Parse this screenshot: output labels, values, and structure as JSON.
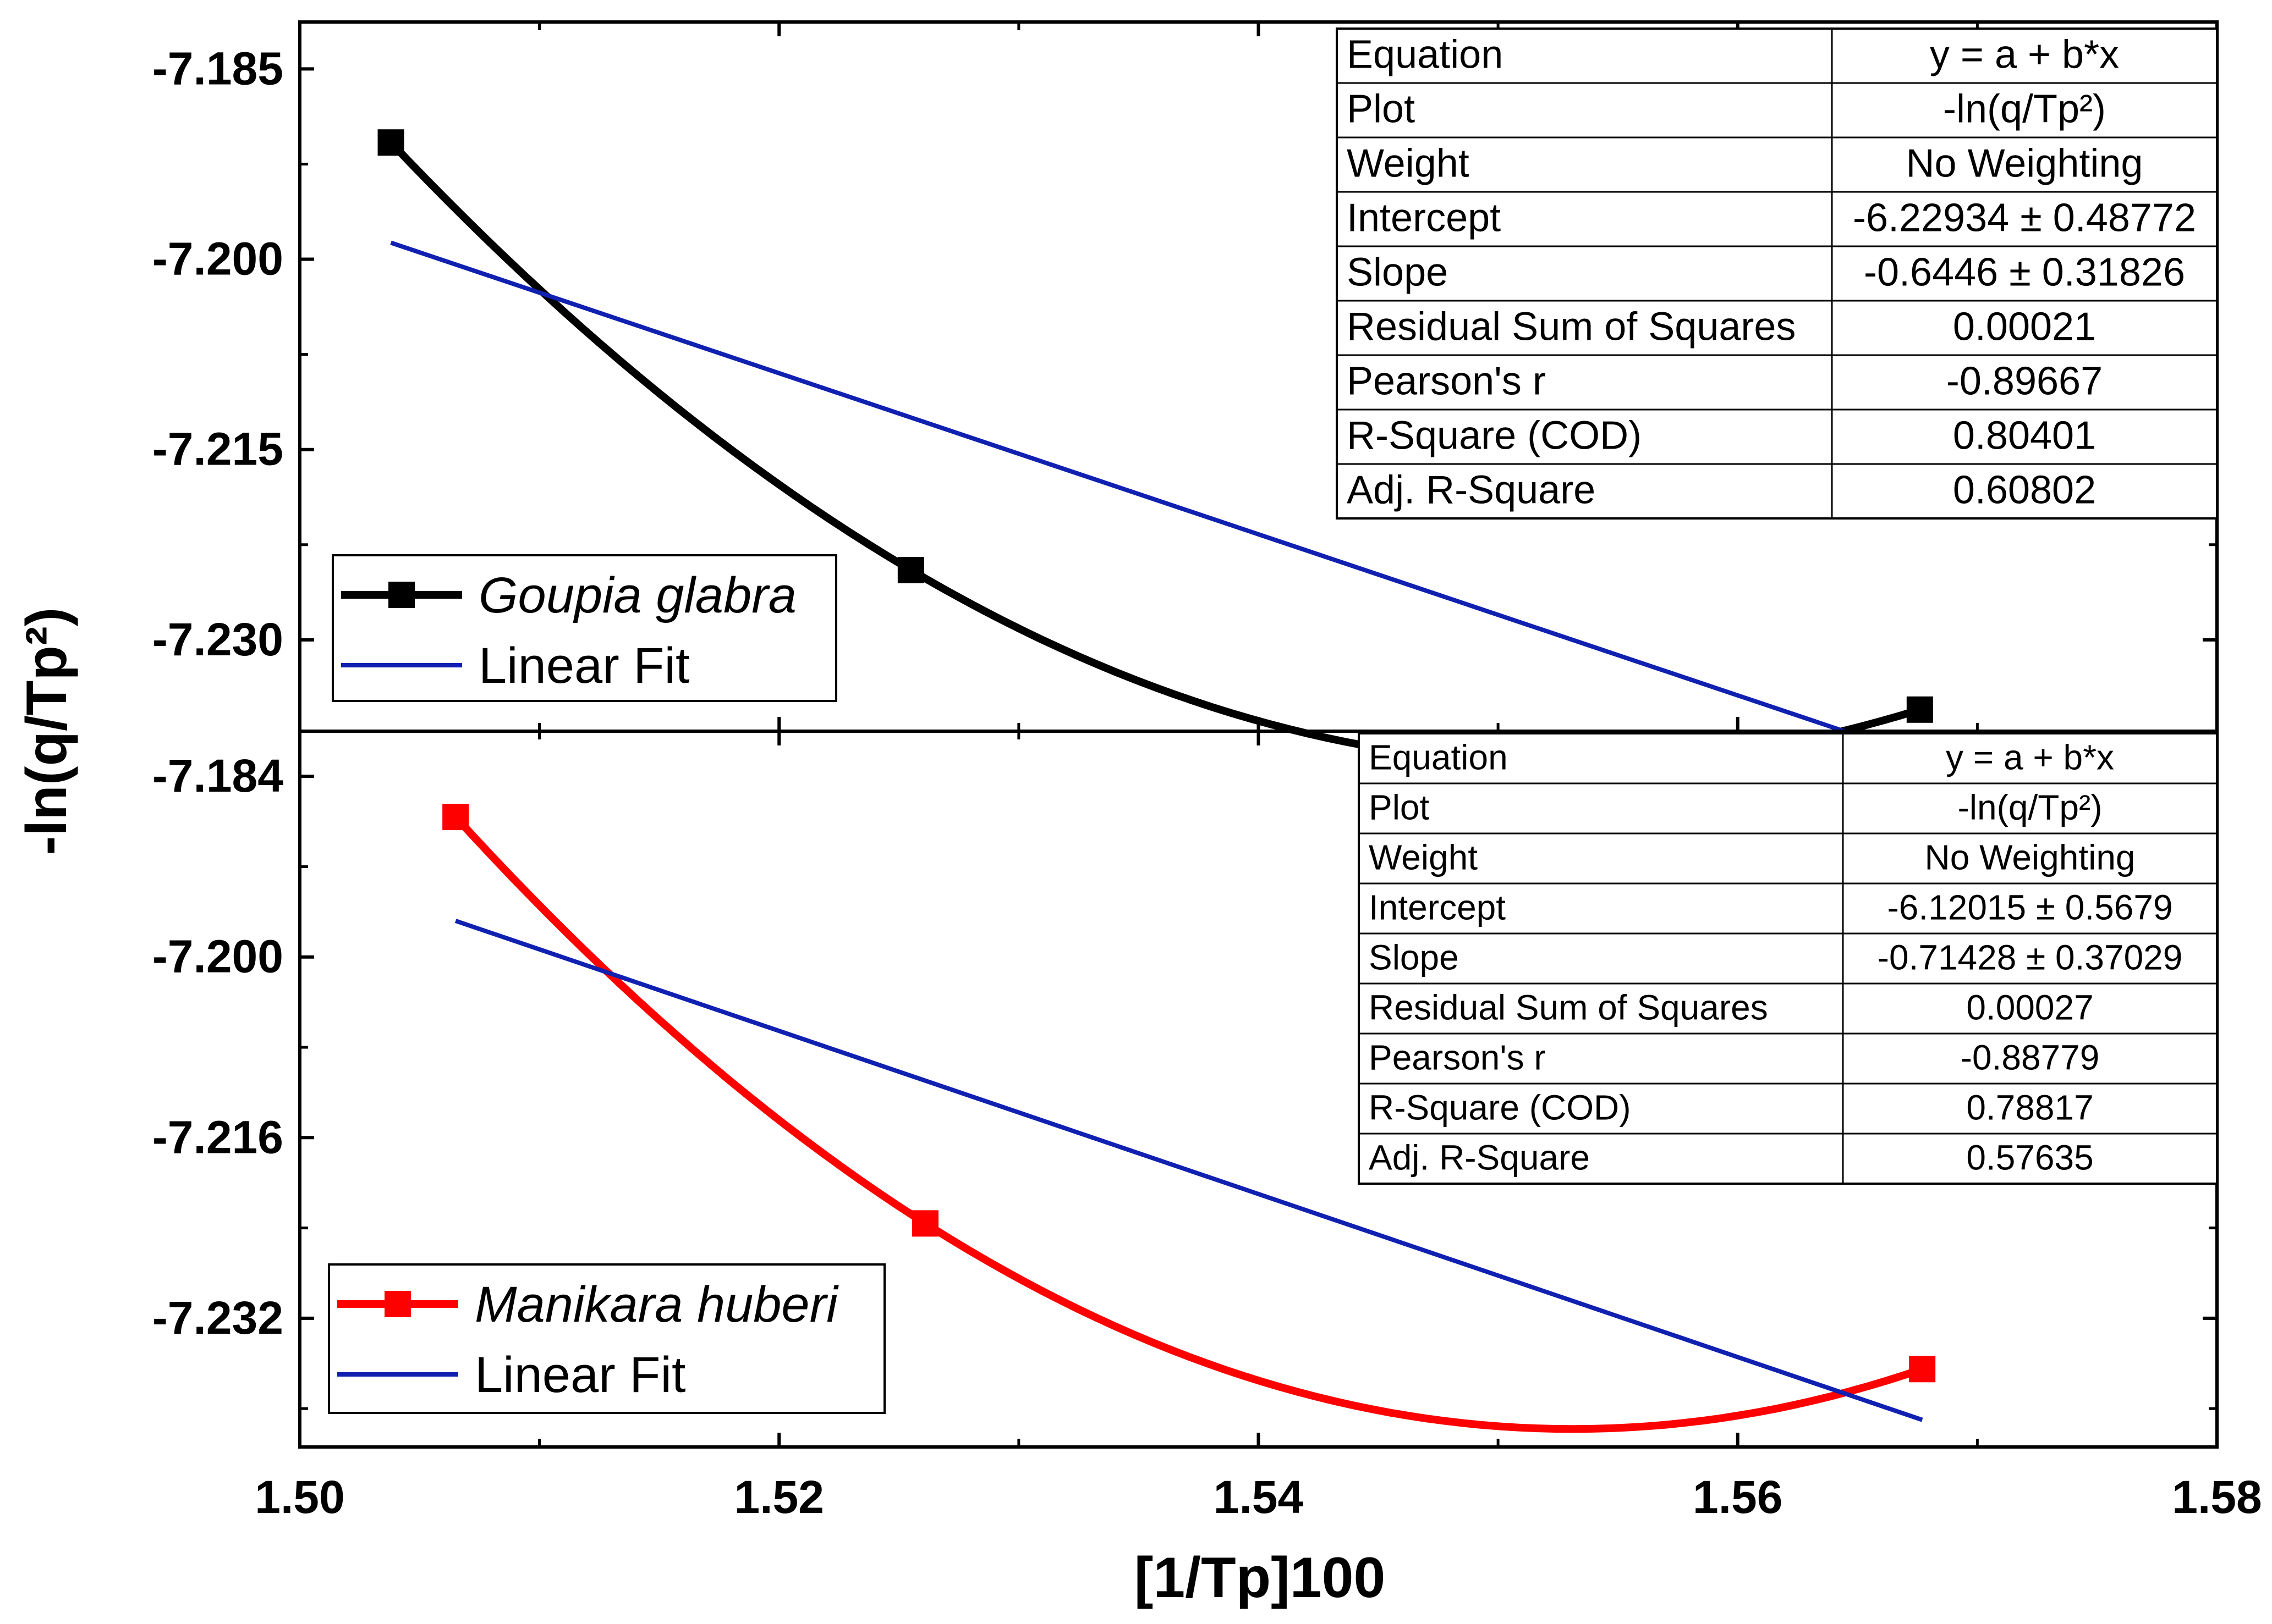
{
  "chart_data": {
    "type": "line",
    "xlabel": "[1/Tp]100",
    "ylabel": "-ln(q/Tp²)",
    "xlim": [
      1.5,
      1.58
    ],
    "x_ticks": [
      "1.50",
      "1.52",
      "1.54",
      "1.56",
      "1.58"
    ],
    "x_tick_values": [
      1.5,
      1.52,
      1.54,
      1.56,
      1.58
    ],
    "panels": [
      {
        "name": "top",
        "ylim": [
          -7.2372,
          -7.1813
        ],
        "y_ticks": [
          "-7.185",
          "-7.200",
          "-7.215",
          "-7.230"
        ],
        "y_tick_values": [
          -7.185,
          -7.2,
          -7.215,
          -7.23
        ],
        "series": [
          {
            "name": "Goupia glabra",
            "italic": true,
            "color": "#000000",
            "marker": "square",
            "x": [
              1.5038,
              1.5255,
              1.5676
            ],
            "y": [
              -7.1908,
              -7.2245,
              -7.2355
            ]
          },
          {
            "name": "Linear Fit",
            "italic": false,
            "color": "#1020b0",
            "marker": "none",
            "x": [
              1.5038,
              1.5676
            ],
            "y": [
              -7.1987,
              -7.2392
            ]
          }
        ],
        "stats_table": [
          [
            "Equation",
            "y = a + b*x"
          ],
          [
            "Plot",
            "-ln(q/Tp²)"
          ],
          [
            "Weight",
            "No Weighting"
          ],
          [
            "Intercept",
            "-6.22934 ± 0.48772"
          ],
          [
            "Slope",
            "-0.6446 ± 0.31826"
          ],
          [
            "Residual Sum of Squares",
            "0.00021"
          ],
          [
            "Pearson's r",
            "-0.89667"
          ],
          [
            "R-Square (COD)",
            "0.80401"
          ],
          [
            "Adj. R-Square",
            "0.60802"
          ]
        ]
      },
      {
        "name": "bottom",
        "ylim": [
          -7.2434,
          -7.18
        ],
        "y_ticks": [
          "-7.184",
          "-7.200",
          "-7.216",
          "-7.232"
        ],
        "y_tick_values": [
          -7.184,
          -7.2,
          -7.216,
          -7.232
        ],
        "series": [
          {
            "name": "Manikara huberi",
            "italic": true,
            "color": "#ff0000",
            "marker": "square",
            "x": [
              1.5065,
              1.5261,
              1.5677
            ],
            "y": [
              -7.1876,
              -7.2236,
              -7.2365
            ]
          },
          {
            "name": "Linear Fit",
            "italic": false,
            "color": "#1020b0",
            "marker": "none",
            "x": [
              1.5065,
              1.5677
            ],
            "y": [
              -7.1968,
              -7.241
            ]
          }
        ],
        "stats_table": [
          [
            "Equation",
            "y = a + b*x"
          ],
          [
            "Plot",
            "-ln(q/Tp²)"
          ],
          [
            "Weight",
            "No Weighting"
          ],
          [
            "Intercept",
            "-6.12015 ± 0.5679"
          ],
          [
            "Slope",
            "-0.71428 ± 0.37029"
          ],
          [
            "Residual Sum of Squares",
            "0.00027"
          ],
          [
            "Pearson's r",
            "-0.88779"
          ],
          [
            "R-Square (COD)",
            "0.78817"
          ],
          [
            "Adj. R-Square",
            "0.57635"
          ]
        ]
      }
    ]
  }
}
